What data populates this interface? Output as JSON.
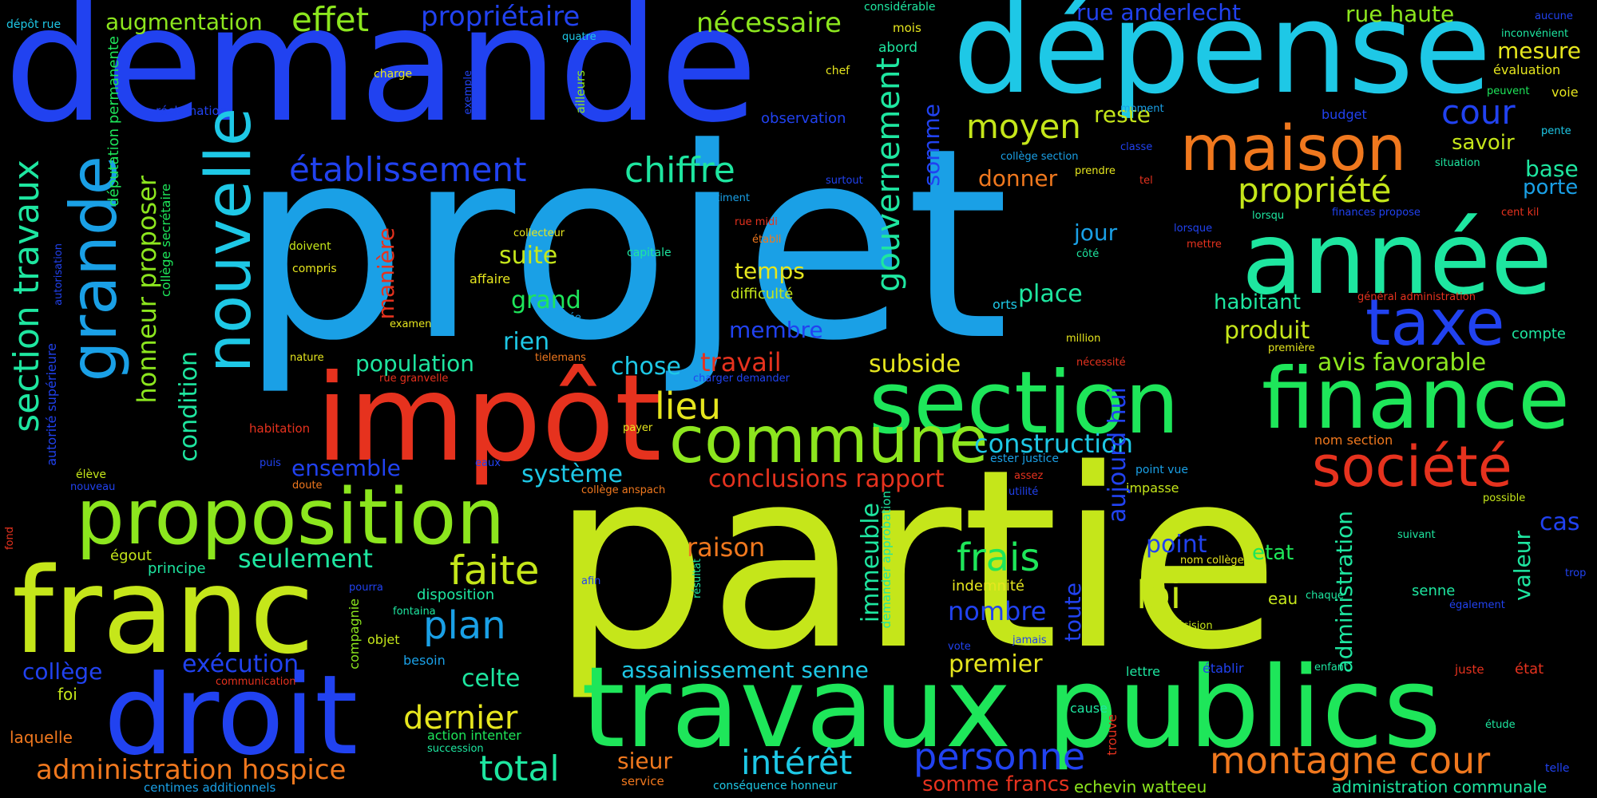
{
  "colors": {
    "background": "#000000",
    "lime": "#c5e61a",
    "sky": "#1aa0e6",
    "blue": "#2142f0",
    "cyan": "#1ec8e6",
    "green": "#1ee65a",
    "mint": "#1ee6a0",
    "orange": "#f0781e",
    "red": "#e6321e",
    "yellow": "#e6e61e",
    "yellowgreen": "#8ce61e"
  },
  "words": [
    {
      "id": "partie",
      "text": "partie"
    },
    {
      "id": "projet",
      "text": "projet"
    },
    {
      "id": "demande",
      "text": "demande"
    },
    {
      "id": "depense",
      "text": "dépense"
    },
    {
      "id": "travaux-publics",
      "text": "travaux publics"
    },
    {
      "id": "impot",
      "text": "impôt"
    },
    {
      "id": "franc",
      "text": "franc"
    },
    {
      "id": "droit",
      "text": "droit"
    },
    {
      "id": "annee",
      "text": "année"
    },
    {
      "id": "section",
      "text": "section"
    },
    {
      "id": "finance",
      "text": "finance"
    },
    {
      "id": "proposition",
      "text": "proposition"
    },
    {
      "id": "commune",
      "text": "commune"
    },
    {
      "id": "maison",
      "text": "maison"
    },
    {
      "id": "societe",
      "text": "société"
    },
    {
      "id": "taxe",
      "text": "taxe"
    },
    {
      "id": "montagne-cour",
      "text": "montagne cour"
    },
    {
      "id": "personne",
      "text": "personne"
    },
    {
      "id": "interet",
      "text": "intérêt"
    },
    {
      "id": "total",
      "text": "total"
    },
    {
      "id": "administration-hospice",
      "text": "administration hospice"
    },
    {
      "id": "dernier",
      "text": "dernier"
    },
    {
      "id": "plan",
      "text": "plan"
    },
    {
      "id": "faite",
      "text": "faite"
    },
    {
      "id": "loi",
      "text": "loi"
    },
    {
      "id": "frais",
      "text": "frais"
    },
    {
      "id": "propriete",
      "text": "propriété"
    },
    {
      "id": "moyen",
      "text": "moyen"
    },
    {
      "id": "chiffre",
      "text": "chiffre"
    },
    {
      "id": "etablissement",
      "text": "établissement"
    },
    {
      "id": "effet",
      "text": "effet"
    },
    {
      "id": "proprietaire",
      "text": "propriétaire"
    },
    {
      "id": "necessaire",
      "text": "nécessaire"
    },
    {
      "id": "augmentation",
      "text": "augmentation"
    },
    {
      "id": "rue-anderlecht",
      "text": "rue anderlecht"
    },
    {
      "id": "rue-haute",
      "text": "rue haute"
    },
    {
      "id": "cour",
      "text": "cour"
    },
    {
      "id": "mesure",
      "text": "mesure"
    },
    {
      "id": "reste",
      "text": "reste"
    },
    {
      "id": "savoir",
      "text": "savoir"
    },
    {
      "id": "base",
      "text": "base"
    },
    {
      "id": "porte",
      "text": "porte"
    },
    {
      "id": "donner",
      "text": "donner"
    },
    {
      "id": "jour",
      "text": "jour"
    },
    {
      "id": "place",
      "text": "place"
    },
    {
      "id": "habitant",
      "text": "habitant"
    },
    {
      "id": "produit",
      "text": "produit"
    },
    {
      "id": "avis-favorable",
      "text": "avis favorable"
    },
    {
      "id": "compte",
      "text": "compte"
    },
    {
      "id": "lieu",
      "text": "lieu"
    },
    {
      "id": "suite",
      "text": "suite"
    },
    {
      "id": "grand",
      "text": "grand"
    },
    {
      "id": "temps",
      "text": "temps"
    },
    {
      "id": "membre",
      "text": "membre"
    },
    {
      "id": "rien",
      "text": "rien"
    },
    {
      "id": "population",
      "text": "population"
    },
    {
      "id": "chose",
      "text": "chose"
    },
    {
      "id": "travail",
      "text": "travail"
    },
    {
      "id": "subside",
      "text": "subside"
    },
    {
      "id": "construction",
      "text": "construction"
    },
    {
      "id": "ensemble",
      "text": "ensemble"
    },
    {
      "id": "systeme",
      "text": "système"
    },
    {
      "id": "conclusions-rapport",
      "text": "conclusions rapport"
    },
    {
      "id": "seulement",
      "text": "seulement"
    },
    {
      "id": "raison",
      "text": "raison"
    },
    {
      "id": "point",
      "text": "point"
    },
    {
      "id": "etat",
      "text": "etat"
    },
    {
      "id": "nombre",
      "text": "nombre"
    },
    {
      "id": "eau",
      "text": "eau"
    },
    {
      "id": "cas",
      "text": "cas"
    },
    {
      "id": "college",
      "text": "collège"
    },
    {
      "id": "execution",
      "text": "exécution"
    },
    {
      "id": "celte",
      "text": "celte"
    },
    {
      "id": "assainissement-senne",
      "text": "assainissement senne"
    },
    {
      "id": "premier",
      "text": "premier"
    },
    {
      "id": "sieur",
      "text": "sieur"
    },
    {
      "id": "somme-francs",
      "text": "somme francs"
    },
    {
      "id": "echevin-watteeu",
      "text": "echevin watteeu"
    },
    {
      "id": "administration-communale",
      "text": "administration communale"
    },
    {
      "id": "laquelle",
      "text": "laquelle"
    },
    {
      "id": "centimes-additionnels",
      "text": "centimes additionnels"
    },
    {
      "id": "foi",
      "text": "foi"
    },
    {
      "id": "egout",
      "text": "égout"
    },
    {
      "id": "principe",
      "text": "principe"
    },
    {
      "id": "disposition",
      "text": "disposition"
    },
    {
      "id": "indemnite",
      "text": "indemnité"
    },
    {
      "id": "depot-rue",
      "text": "dépôt rue"
    },
    {
      "id": "reclamation",
      "text": "réclamation"
    },
    {
      "id": "charge",
      "text": "charge"
    },
    {
      "id": "quatre",
      "text": "quatre"
    },
    {
      "id": "considerable",
      "text": "considérable"
    },
    {
      "id": "mois",
      "text": "mois"
    },
    {
      "id": "abord",
      "text": "abord"
    },
    {
      "id": "chef",
      "text": "chef"
    },
    {
      "id": "observation",
      "text": "observation"
    },
    {
      "id": "moment",
      "text": "moment"
    },
    {
      "id": "budget",
      "text": "budget"
    },
    {
      "id": "classe",
      "text": "classe"
    },
    {
      "id": "college-section",
      "text": "collège section"
    },
    {
      "id": "prendre",
      "text": "prendre"
    },
    {
      "id": "surtout",
      "text": "surtout"
    },
    {
      "id": "batiment",
      "text": "bâtiment"
    },
    {
      "id": "tel",
      "text": "tel"
    },
    {
      "id": "lorsqu",
      "text": "lorsqu"
    },
    {
      "id": "finances-propose",
      "text": "finances propose"
    },
    {
      "id": "lorsque",
      "text": "lorsque"
    },
    {
      "id": "mettre",
      "text": "mettre"
    },
    {
      "id": "cote",
      "text": "côté"
    },
    {
      "id": "collecteur",
      "text": "collecteur"
    },
    {
      "id": "capitale",
      "text": "capitale"
    },
    {
      "id": "rue-midi",
      "text": "rue midi"
    },
    {
      "id": "etabli",
      "text": "établi"
    },
    {
      "id": "doivent",
      "text": "doivent"
    },
    {
      "id": "compris",
      "text": "compris"
    },
    {
      "id": "affaire",
      "text": "affaire"
    },
    {
      "id": "difficulte",
      "text": "difficulté"
    },
    {
      "id": "orts",
      "text": "orts"
    },
    {
      "id": "examen",
      "text": "examen"
    },
    {
      "id": "idee",
      "text": "idée"
    },
    {
      "id": "nature",
      "text": "nature"
    },
    {
      "id": "tielemans",
      "text": "tielemans"
    },
    {
      "id": "million",
      "text": "million"
    },
    {
      "id": "premiere",
      "text": "première"
    },
    {
      "id": "charger-demander",
      "text": "charger demander"
    },
    {
      "id": "rue-granvelle",
      "text": "rue granvelle"
    },
    {
      "id": "necessite",
      "text": "nécessité"
    },
    {
      "id": "habitation",
      "text": "habitation"
    },
    {
      "id": "payer",
      "text": "payer"
    },
    {
      "id": "ester-justice",
      "text": "ester justice"
    },
    {
      "id": "nom-section",
      "text": "nom section"
    },
    {
      "id": "puis",
      "text": "puis"
    },
    {
      "id": "eaux",
      "text": "eaux"
    },
    {
      "id": "assez",
      "text": "assez"
    },
    {
      "id": "point-vue",
      "text": "point vue"
    },
    {
      "id": "eleve",
      "text": "élève"
    },
    {
      "id": "nouveau",
      "text": "nouveau"
    },
    {
      "id": "doute",
      "text": "doute"
    },
    {
      "id": "college-anspach",
      "text": "collège anspach"
    },
    {
      "id": "utilite",
      "text": "utilité"
    },
    {
      "id": "impasse",
      "text": "impasse"
    },
    {
      "id": "possible",
      "text": "possible"
    },
    {
      "id": "suivant",
      "text": "suivant"
    },
    {
      "id": "nom-college",
      "text": "nom collège"
    },
    {
      "id": "afin",
      "text": "afin"
    },
    {
      "id": "pourra",
      "text": "pourra"
    },
    {
      "id": "fontaina",
      "text": "fontaina"
    },
    {
      "id": "objet",
      "text": "objet"
    },
    {
      "id": "chaque",
      "text": "chaque"
    },
    {
      "id": "senne",
      "text": "senne"
    },
    {
      "id": "egalement",
      "text": "également"
    },
    {
      "id": "trop",
      "text": "trop"
    },
    {
      "id": "decision",
      "text": "décision"
    },
    {
      "id": "jamais",
      "text": "jamais"
    },
    {
      "id": "vote",
      "text": "vote"
    },
    {
      "id": "besoin",
      "text": "besoin"
    },
    {
      "id": "communication",
      "text": "communication"
    },
    {
      "id": "lettre",
      "text": "lettre"
    },
    {
      "id": "etablir",
      "text": "établir"
    },
    {
      "id": "enfant",
      "text": "enfant"
    },
    {
      "id": "juste",
      "text": "juste"
    },
    {
      "id": "etat-accent",
      "text": "état"
    },
    {
      "id": "cause",
      "text": "cause"
    },
    {
      "id": "etude",
      "text": "étude"
    },
    {
      "id": "action-intenter",
      "text": "action intenter"
    },
    {
      "id": "succession",
      "text": "succession"
    },
    {
      "id": "service",
      "text": "service"
    },
    {
      "id": "consequence-honneur",
      "text": "conséquence honneur"
    },
    {
      "id": "telle",
      "text": "telle"
    },
    {
      "id": "aucune",
      "text": "aucune"
    },
    {
      "id": "inconvenient",
      "text": "inconvénient"
    },
    {
      "id": "evaluation",
      "text": "évaluation"
    },
    {
      "id": "peuvent",
      "text": "peuvent"
    },
    {
      "id": "voie",
      "text": "voie"
    },
    {
      "id": "pente",
      "text": "pente"
    },
    {
      "id": "situation",
      "text": "situation"
    },
    {
      "id": "cent-kil",
      "text": "cent kil"
    },
    {
      "id": "general-administration",
      "text": "général administration"
    },
    {
      "id": "grande",
      "text": "grande"
    },
    {
      "id": "nouvelle",
      "text": "nouvelle"
    },
    {
      "id": "section-travaux",
      "text": "section travaux"
    },
    {
      "id": "honneur-proposer",
      "text": "honneur proposer"
    },
    {
      "id": "deputation-permanente",
      "text": "députation permanente"
    },
    {
      "id": "college-secretaire",
      "text": "collège secrétaire"
    },
    {
      "id": "condition",
      "text": "condition"
    },
    {
      "id": "autorisation",
      "text": "autorisation"
    },
    {
      "id": "autorite-superieure",
      "text": "autorité supérieure"
    },
    {
      "id": "fond",
      "text": "fond"
    },
    {
      "id": "exemple",
      "text": "exemple"
    },
    {
      "id": "ailleurs",
      "text": "ailleurs"
    },
    {
      "id": "maniere",
      "text": "manière"
    },
    {
      "id": "gouvernement",
      "text": "gouvernement"
    },
    {
      "id": "somme",
      "text": "somme"
    },
    {
      "id": "aujourd-hui",
      "text": "aujourd hui"
    },
    {
      "id": "administration",
      "text": "administration"
    },
    {
      "id": "valeur",
      "text": "valeur"
    },
    {
      "id": "immeuble",
      "text": "immeuble"
    },
    {
      "id": "demander-approbation",
      "text": "demander approbation"
    },
    {
      "id": "toute",
      "text": "toute"
    },
    {
      "id": "compagnie",
      "text": "compagnie"
    },
    {
      "id": "resultat",
      "text": "résultat"
    },
    {
      "id": "trouve",
      "text": "trouve"
    }
  ]
}
